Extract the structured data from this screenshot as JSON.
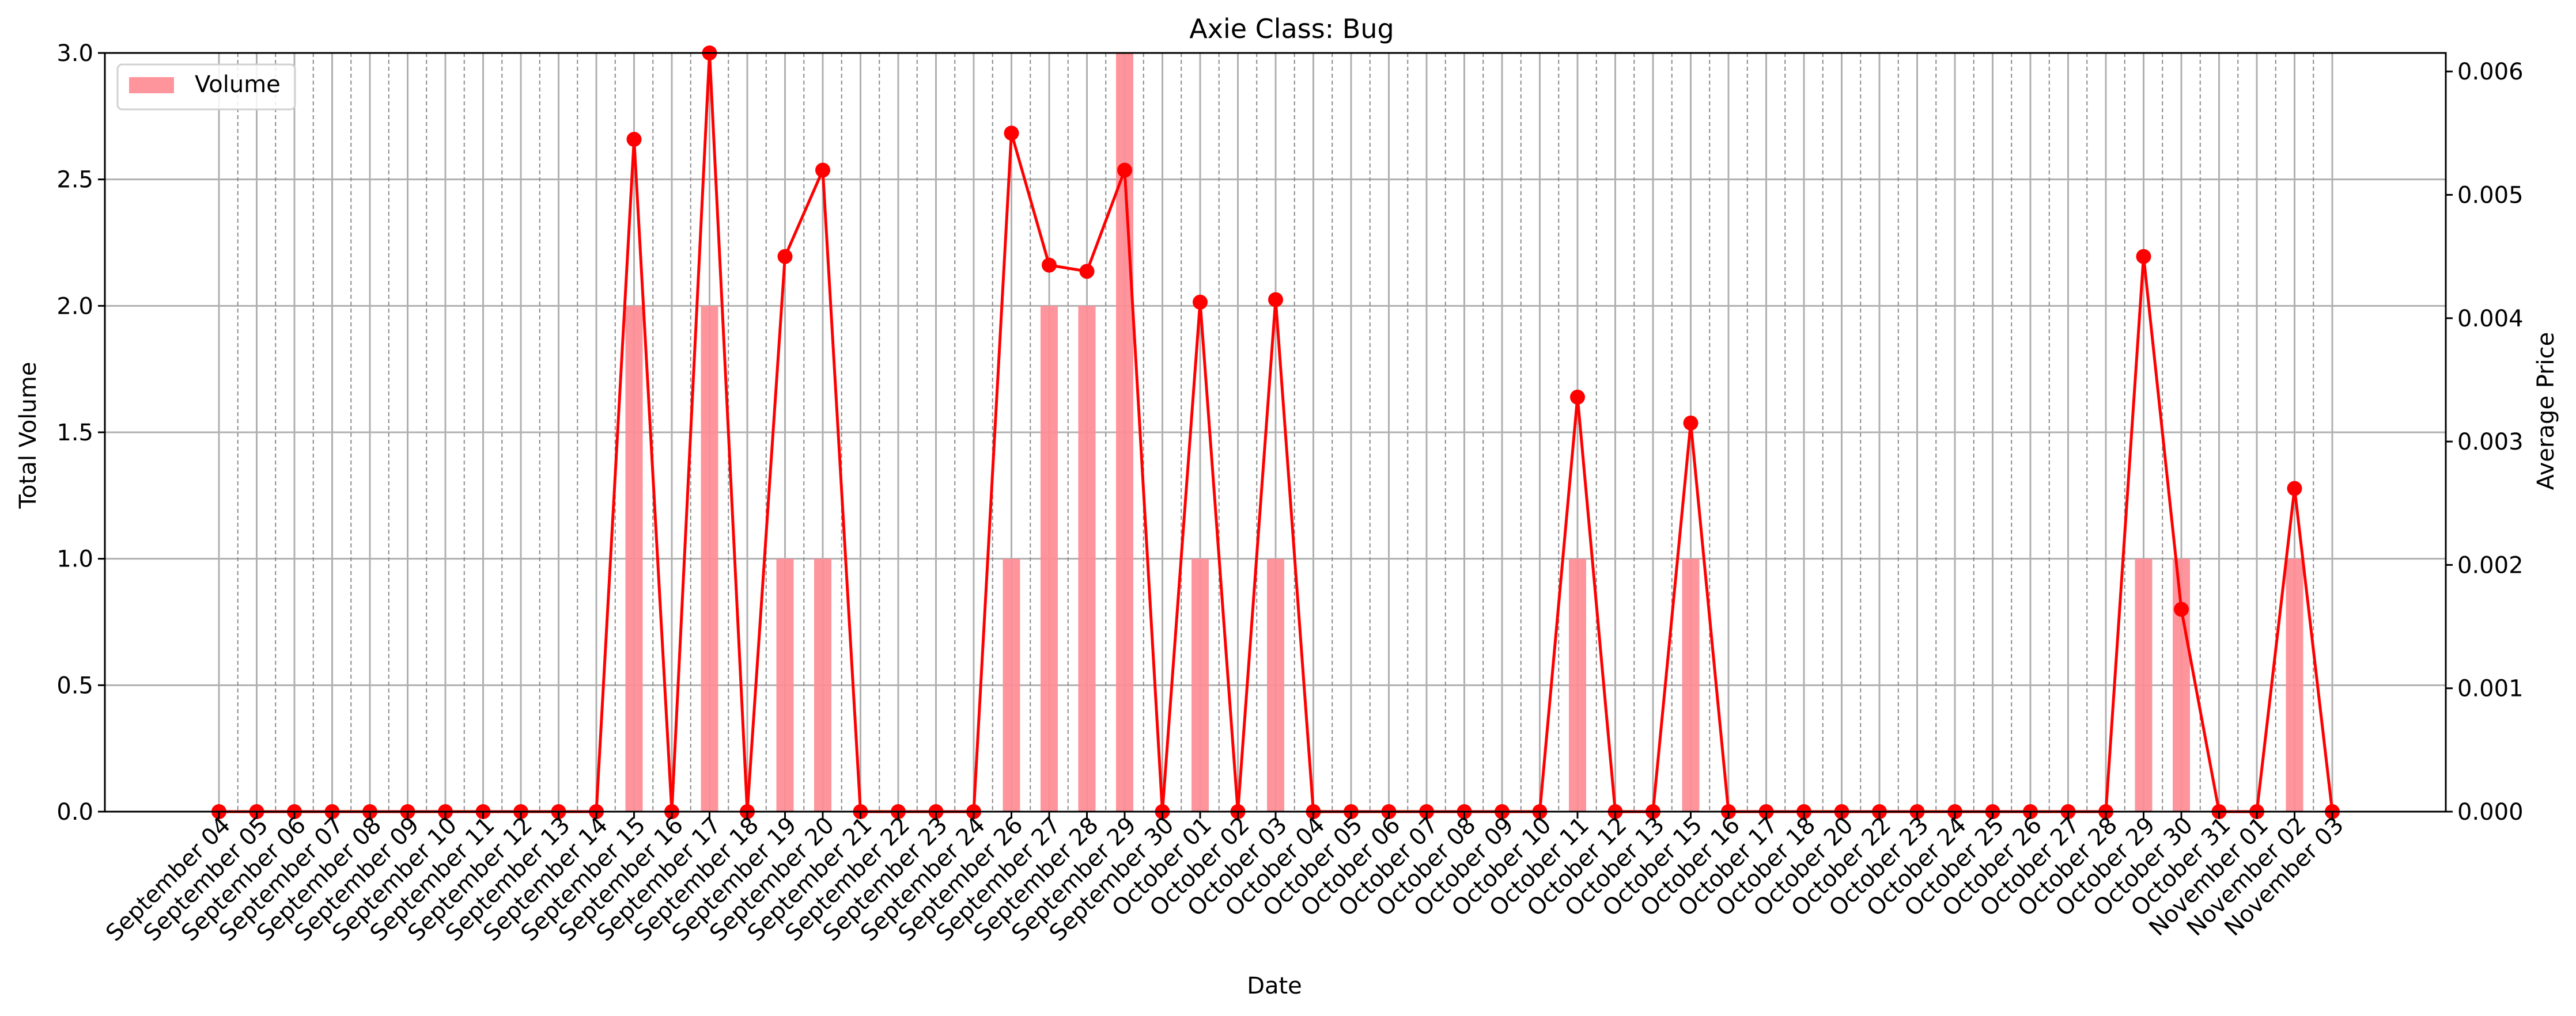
{
  "chart_data": {
    "type": "bar",
    "title": "Axie Class: Bug",
    "xlabel": "Date",
    "ylabel": "Total Volume",
    "y2label": "Average Price",
    "ylim": [
      0,
      3.0
    ],
    "y2lim": [
      0,
      0.00615
    ],
    "yticks": [
      "0.0",
      "0.5",
      "1.0",
      "1.5",
      "2.0",
      "2.5",
      "3.0"
    ],
    "y2ticks": [
      "0.000",
      "0.001",
      "0.002",
      "0.003",
      "0.004",
      "0.005",
      "0.006"
    ],
    "grid": true,
    "legend": {
      "position": "top-left",
      "entries": [
        "Volume"
      ]
    },
    "colors": {
      "bar": "#ff8c94",
      "line": "#ff0000",
      "grid": "#b0b0b0"
    },
    "categories": [
      "September 04",
      "September 05",
      "September 06",
      "September 07",
      "September 08",
      "September 09",
      "September 10",
      "September 11",
      "September 12",
      "September 13",
      "September 14",
      "September 15",
      "September 16",
      "September 17",
      "September 18",
      "September 19",
      "September 20",
      "September 21",
      "September 22",
      "September 23",
      "September 24",
      "September 26",
      "September 27",
      "September 28",
      "September 29",
      "September 30",
      "October 01",
      "October 02",
      "October 03",
      "October 04",
      "October 05",
      "October 06",
      "October 07",
      "October 08",
      "October 09",
      "October 10",
      "October 11",
      "October 12",
      "October 13",
      "October 15",
      "October 16",
      "October 17",
      "October 18",
      "October 20",
      "October 22",
      "October 23",
      "October 24",
      "October 25",
      "October 26",
      "October 27",
      "October 28",
      "October 29",
      "October 30",
      "October 31",
      "November 01",
      "November 02",
      "November 03"
    ],
    "series": [
      {
        "name": "Volume",
        "kind": "bar",
        "axis": "left",
        "values": [
          0,
          0,
          0,
          0,
          0,
          0,
          0,
          0,
          0,
          0,
          0,
          2,
          0,
          2,
          0,
          1,
          1,
          0,
          0,
          0,
          0,
          1,
          2,
          2,
          3,
          0,
          1,
          0,
          1,
          0,
          0,
          0,
          0,
          0,
          0,
          0,
          1,
          0,
          0,
          1,
          0,
          0,
          0,
          0,
          0,
          0,
          0,
          0,
          0,
          0,
          0,
          1,
          1,
          0,
          0,
          1,
          0
        ]
      },
      {
        "kind": "line",
        "axis": "right",
        "values": [
          0,
          0,
          0,
          0,
          0,
          0,
          0,
          0,
          0,
          0,
          0,
          0.00545,
          0,
          0.00615,
          0,
          0.0045,
          0.0052,
          0,
          0,
          0,
          0,
          0.0055,
          0.00443,
          0.00438,
          0.0052,
          0,
          0.00413,
          0,
          0.00415,
          0,
          0,
          0,
          0,
          0,
          0,
          0,
          0.00336,
          0,
          0,
          0.00315,
          0,
          0,
          0,
          0,
          0,
          0,
          0,
          0,
          0,
          0,
          0,
          0.0045,
          0.00164,
          0,
          0,
          0.00262,
          0
        ]
      }
    ]
  }
}
